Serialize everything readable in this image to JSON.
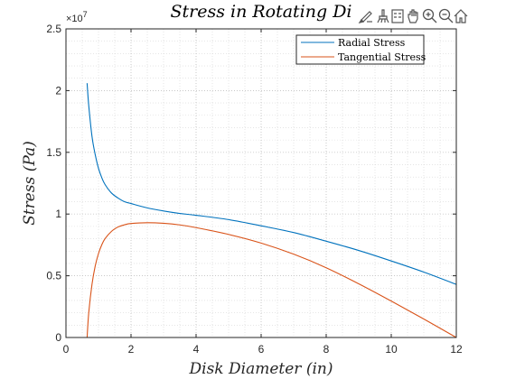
{
  "toolbar": {
    "icons": [
      "data-tips-icon",
      "brush-icon",
      "legend-toggle-icon",
      "pan-hand-icon",
      "zoom-in-icon",
      "zoom-out-icon",
      "home-icon"
    ]
  },
  "chart_data": {
    "type": "line",
    "title": "Stress in Rotating Disk",
    "title_visible": "Stress in Rotating Di",
    "xlabel": "Disk Diameter (in)",
    "ylabel": "Stress (Pa)",
    "xlim": [
      0,
      12
    ],
    "ylim": [
      0,
      25000000
    ],
    "y_exponent_label": "×10",
    "y_exponent_power": "7",
    "x_ticks": [
      0,
      2,
      4,
      6,
      8,
      10,
      12
    ],
    "x_tick_labels": [
      "0",
      "2",
      "4",
      "6",
      "8",
      "10",
      "12"
    ],
    "y_ticks": [
      0,
      5000000,
      10000000,
      15000000,
      20000000,
      25000000
    ],
    "y_tick_labels": [
      "0",
      "0.5",
      "1",
      "1.5",
      "2",
      "2.5"
    ],
    "grid": "on (major and minor, dotted)",
    "legend_position": "top-right",
    "colors": {
      "radial": "#0072BD",
      "tangential": "#D95319"
    },
    "series": [
      {
        "name": "Radial Stress",
        "x": [
          0.65,
          0.7,
          0.8,
          0.9,
          1.0,
          1.1,
          1.2,
          1.4,
          1.6,
          1.8,
          2.0,
          2.5,
          3.0,
          3.5,
          4.0,
          5.0,
          6.0,
          7.0,
          8.0,
          9.0,
          10.0,
          11.0,
          12.0
        ],
        "values": [
          20600000,
          18800000,
          16300000,
          14800000,
          13700000,
          12950000,
          12400000,
          11700000,
          11300000,
          11000000,
          10850000,
          10500000,
          10250000,
          10050000,
          9900000,
          9550000,
          9050000,
          8500000,
          7800000,
          7050000,
          6200000,
          5300000,
          4300000
        ]
      },
      {
        "name": "Tangential Stress",
        "x": [
          0.65,
          0.7,
          0.8,
          0.9,
          1.0,
          1.1,
          1.2,
          1.4,
          1.6,
          1.8,
          2.0,
          2.5,
          3.0,
          3.5,
          4.0,
          5.0,
          6.0,
          7.0,
          8.0,
          9.0,
          10.0,
          11.0,
          12.0
        ],
        "values": [
          0,
          2000000,
          4300000,
          5800000,
          6800000,
          7500000,
          8000000,
          8600000,
          8950000,
          9130000,
          9230000,
          9300000,
          9250000,
          9120000,
          8900000,
          8350000,
          7650000,
          6750000,
          5650000,
          4350000,
          2950000,
          1500000,
          0
        ]
      }
    ]
  }
}
